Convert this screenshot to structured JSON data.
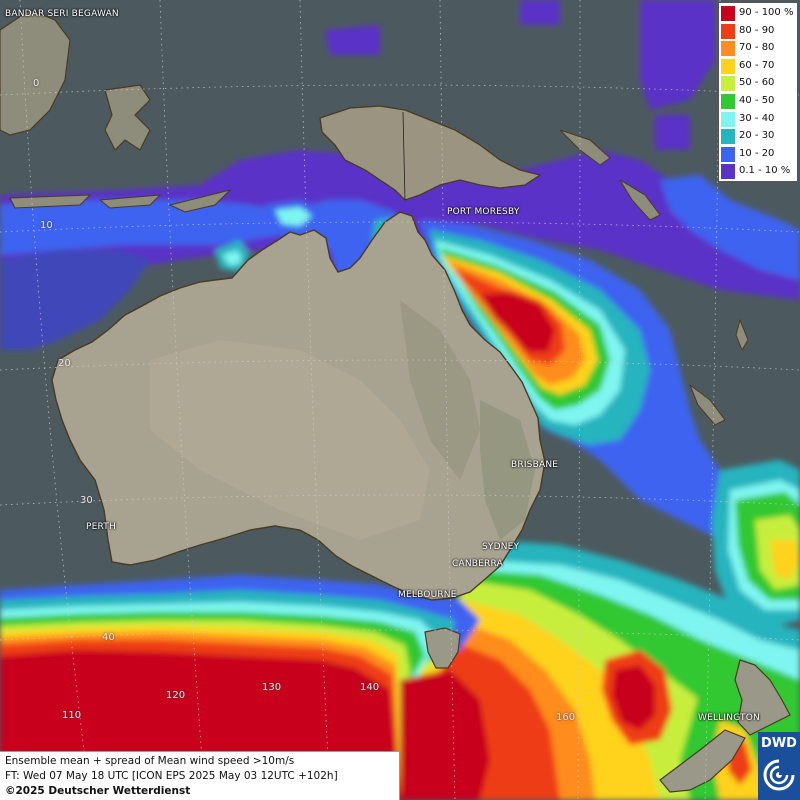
{
  "map": {
    "cities": [
      {
        "name": "BANDAR SERI BEGAWAN"
      },
      {
        "name": "PORT MORESBY"
      },
      {
        "name": "BRISBANE"
      },
      {
        "name": "PERTH"
      },
      {
        "name": "SYDNEY"
      },
      {
        "name": "CANBERRA"
      },
      {
        "name": "MELBOURNE"
      },
      {
        "name": "WELLINGTON"
      }
    ],
    "grid_labels": [
      "0",
      "10",
      "20",
      "30",
      "40",
      "110",
      "120",
      "130",
      "140",
      "160"
    ]
  },
  "legend": {
    "items": [
      {
        "label": "90 - 100 %",
        "color": "#c8001e"
      },
      {
        "label": "80 - 90",
        "color": "#ee3c14"
      },
      {
        "label": "70 - 80",
        "color": "#ff8c1e"
      },
      {
        "label": "60 - 70",
        "color": "#ffd21e"
      },
      {
        "label": "50 - 60",
        "color": "#c8ee3c"
      },
      {
        "label": "40 - 50",
        "color": "#32c832"
      },
      {
        "label": "30 - 40",
        "color": "#7ef5f0"
      },
      {
        "label": "20 - 30",
        "color": "#28b4be"
      },
      {
        "label": "10 - 20",
        "color": "#3c64f0"
      },
      {
        "label": "0.1 - 10 %",
        "color": "#5a32c8"
      }
    ]
  },
  "footer": {
    "line1": "Ensemble mean + spread of Mean wind speed >10m/s",
    "line2": "FT: Wed 07 May 18 UTC [ICON EPS 2025 May 03 12UTC +102h]",
    "line3": "©2025 Deutscher Wetterdienst"
  },
  "logo": {
    "text": "DWD"
  }
}
